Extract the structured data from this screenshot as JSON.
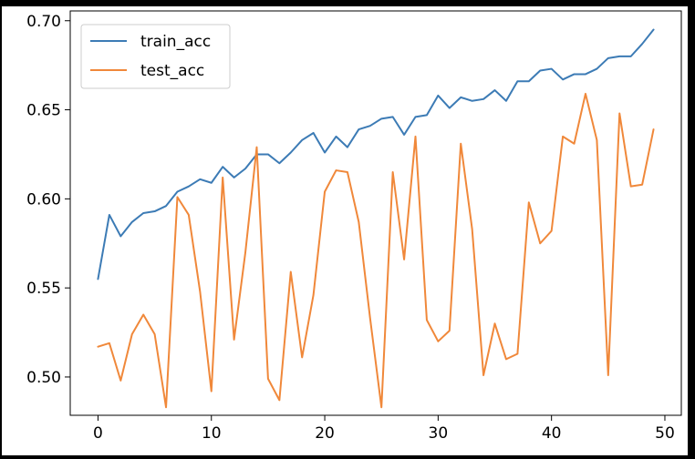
{
  "chart_data": {
    "type": "line",
    "title": "",
    "xlabel": "",
    "ylabel": "",
    "xlim": [
      -2.45,
      51.45
    ],
    "ylim": [
      0.4785,
      0.7055
    ],
    "xticks": [
      0,
      10,
      20,
      30,
      40,
      50
    ],
    "yticks": [
      0.5,
      0.55,
      0.6,
      0.65,
      0.7
    ],
    "xtick_labels": [
      "0",
      "10",
      "20",
      "30",
      "40",
      "50"
    ],
    "ytick_labels": [
      "0.50",
      "0.55",
      "0.60",
      "0.65",
      "0.70"
    ],
    "grid": false,
    "legend_position": "top-left",
    "x": [
      0,
      1,
      2,
      3,
      4,
      5,
      6,
      7,
      8,
      9,
      10,
      11,
      12,
      13,
      14,
      15,
      16,
      17,
      18,
      19,
      20,
      21,
      22,
      23,
      24,
      25,
      26,
      27,
      28,
      29,
      30,
      31,
      32,
      33,
      34,
      35,
      36,
      37,
      38,
      39,
      40,
      41,
      42,
      43,
      44,
      45,
      46,
      47,
      48,
      49
    ],
    "series": [
      {
        "name": "train_acc",
        "color": "#3c7bb5",
        "values": [
          0.555,
          0.591,
          0.579,
          0.587,
          0.592,
          0.593,
          0.596,
          0.604,
          0.607,
          0.611,
          0.609,
          0.618,
          0.612,
          0.617,
          0.625,
          0.625,
          0.62,
          0.626,
          0.633,
          0.637,
          0.626,
          0.635,
          0.629,
          0.639,
          0.641,
          0.645,
          0.646,
          0.636,
          0.646,
          0.647,
          0.658,
          0.651,
          0.657,
          0.655,
          0.656,
          0.661,
          0.655,
          0.666,
          0.666,
          0.672,
          0.673,
          0.667,
          0.67,
          0.67,
          0.673,
          0.679,
          0.68,
          0.68,
          0.687,
          0.695
        ]
      },
      {
        "name": "test_acc",
        "color": "#f0883a",
        "values": [
          0.517,
          0.519,
          0.498,
          0.524,
          0.535,
          0.524,
          0.483,
          0.601,
          0.591,
          0.548,
          0.492,
          0.612,
          0.521,
          0.57,
          0.629,
          0.499,
          0.487,
          0.559,
          0.511,
          0.546,
          0.604,
          0.616,
          0.615,
          0.587,
          0.533,
          0.483,
          0.615,
          0.566,
          0.635,
          0.532,
          0.52,
          0.526,
          0.631,
          0.583,
          0.501,
          0.53,
          0.51,
          0.513,
          0.598,
          0.575,
          0.582,
          0.635,
          0.631,
          0.659,
          0.633,
          0.501,
          0.648,
          0.607,
          0.608,
          0.639
        ]
      }
    ]
  }
}
